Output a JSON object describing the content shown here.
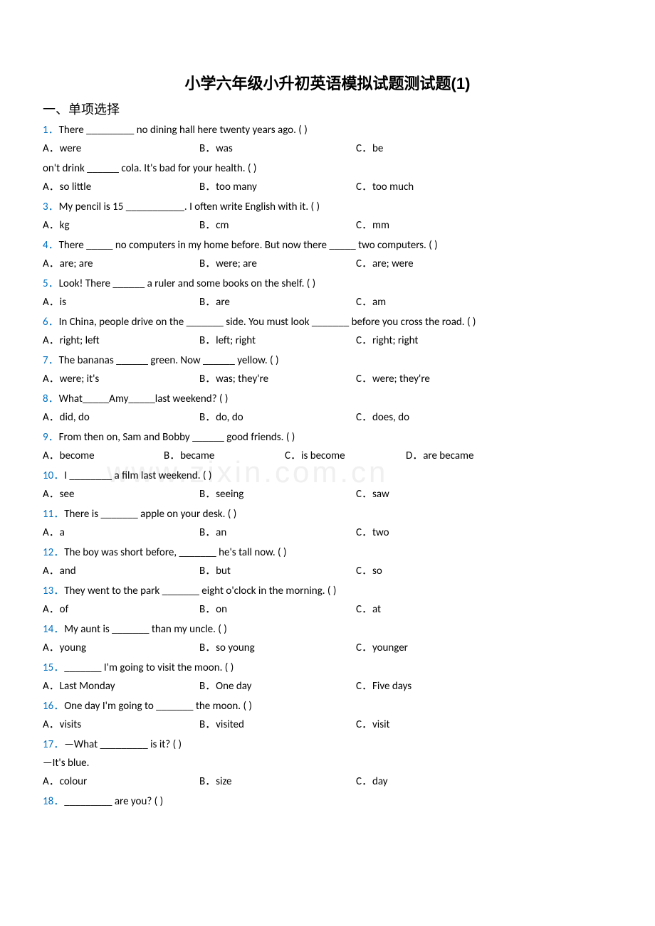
{
  "title": "小学六年级小升初英语模拟试题测试题(1)",
  "section_header": "一、单项选择",
  "watermark": "www.zixin.com.cn",
  "questions": [
    {
      "num": "1",
      "text": "There _________ no dining hall here twenty years ago. (    )",
      "opts": [
        {
          "l": "A",
          "t": "were"
        },
        {
          "l": "B",
          "t": "was"
        },
        {
          "l": "C",
          "t": "be"
        }
      ]
    },
    {
      "prefix": "on't drink ______ cola. It's bad for your health. (    )",
      "opts": [
        {
          "l": "A",
          "t": "so little"
        },
        {
          "l": "B",
          "t": "too many"
        },
        {
          "l": "C",
          "t": "too much"
        }
      ]
    },
    {
      "num": "3",
      "text": "My pencil is 15 ___________. I often write English with it. (     )",
      "opts": [
        {
          "l": "A",
          "t": "kg"
        },
        {
          "l": "B",
          "t": "cm"
        },
        {
          "l": "C",
          "t": "mm"
        }
      ]
    },
    {
      "num": "4",
      "text": "There _____ no computers in my home before. But now there _____ two computers. (    )",
      "opts": [
        {
          "l": "A",
          "t": "are; are"
        },
        {
          "l": "B",
          "t": "were; are"
        },
        {
          "l": "C",
          "t": "are; were"
        }
      ]
    },
    {
      "num": "5",
      "text": "Look! There ______ a ruler and some books on the shelf. (   )",
      "opts": [
        {
          "l": "A",
          "t": "is"
        },
        {
          "l": "B",
          "t": "are"
        },
        {
          "l": "C",
          "t": "am"
        }
      ]
    },
    {
      "num": "6",
      "text": "In China, people drive on the _______ side. You must look _______ before you cross the road. (   )",
      "opts": [
        {
          "l": "A",
          "t": "right; left"
        },
        {
          "l": "B",
          "t": "left; right"
        },
        {
          "l": "C",
          "t": "right; right"
        }
      ]
    },
    {
      "num": "7",
      "text": "The bananas ______ green. Now ______ yellow. (   )",
      "opts": [
        {
          "l": "A",
          "t": "were; it's"
        },
        {
          "l": "B",
          "t": "was; they're"
        },
        {
          "l": "C",
          "t": "were; they're"
        }
      ]
    },
    {
      "num": "8",
      "text": "What_____Amy_____last weekend? (   )",
      "opts": [
        {
          "l": "A",
          "t": "did, do"
        },
        {
          "l": "B",
          "t": "do, do"
        },
        {
          "l": "C",
          "t": "does, do"
        }
      ]
    },
    {
      "num": "9",
      "text": "From then on, Sam and Bobby ______ good friends. (   )",
      "opts": [
        {
          "l": "A",
          "t": "become"
        },
        {
          "l": "B",
          "t": "became"
        },
        {
          "l": "C",
          "t": "is become"
        },
        {
          "l": "D",
          "t": "are became"
        }
      ],
      "four": true
    },
    {
      "num": "10",
      "text": "I ________ a film last weekend. (    )",
      "opts": [
        {
          "l": "A",
          "t": "see"
        },
        {
          "l": "B",
          "t": "seeing"
        },
        {
          "l": "C",
          "t": "saw"
        }
      ]
    },
    {
      "num": "11",
      "text": "There is _______ apple on your desk. (    )",
      "opts": [
        {
          "l": "A",
          "t": "a"
        },
        {
          "l": "B",
          "t": "an"
        },
        {
          "l": "C",
          "t": "two"
        }
      ]
    },
    {
      "num": "12",
      "text": "The boy was short before, _______ he's tall now. (   )",
      "opts": [
        {
          "l": "A",
          "t": "and"
        },
        {
          "l": "B",
          "t": "but"
        },
        {
          "l": "C",
          "t": "so"
        }
      ]
    },
    {
      "num": "13",
      "text": "They went to the park _______ eight o'clock in the morning. (   )",
      "opts": [
        {
          "l": "A",
          "t": "of"
        },
        {
          "l": "B",
          "t": "on"
        },
        {
          "l": "C",
          "t": "at"
        }
      ]
    },
    {
      "num": "14",
      "text": "My aunt is _______ than my uncle. (   )",
      "opts": [
        {
          "l": "A",
          "t": "young"
        },
        {
          "l": "B",
          "t": "so young"
        },
        {
          "l": "C",
          "t": "younger"
        }
      ]
    },
    {
      "num": "15",
      "text": "_______ I'm going to visit the moon. (   )",
      "opts": [
        {
          "l": "A",
          "t": "Last Monday"
        },
        {
          "l": "B",
          "t": "One day"
        },
        {
          "l": "C",
          "t": "Five days"
        }
      ]
    },
    {
      "num": "16",
      "text": "One day I'm going to _______ the moon. (    )",
      "opts": [
        {
          "l": "A",
          "t": "visits"
        },
        {
          "l": "B",
          "t": "visited"
        },
        {
          "l": "C",
          "t": "visit"
        }
      ]
    },
    {
      "num": "17",
      "text": "—What _________ is it? (    )",
      "extra": "—It's blue.",
      "opts": [
        {
          "l": "A",
          "t": "colour"
        },
        {
          "l": "B",
          "t": "size"
        },
        {
          "l": "C",
          "t": "day"
        }
      ]
    },
    {
      "num": "18",
      "text": "_________ are you? (    )",
      "opts": []
    }
  ],
  "colors": {
    "number": "#0070c0",
    "text": "#000000",
    "background": "#ffffff",
    "watermark": "#f0f0f0"
  }
}
